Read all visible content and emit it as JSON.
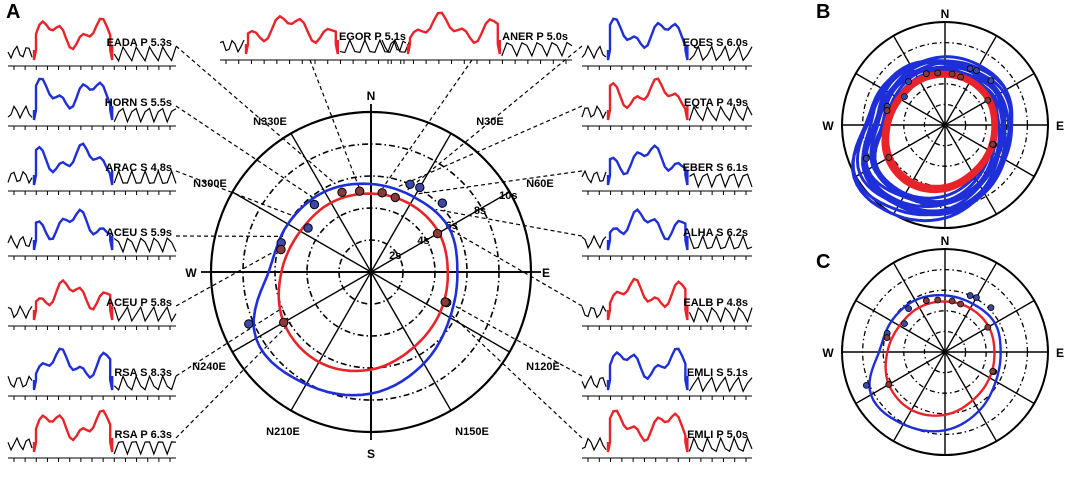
{
  "colors": {
    "p_wave": "#e8242a",
    "s_wave": "#1f2fd8",
    "black": "#000000",
    "station_dot": "#8b3a3a"
  },
  "panels": {
    "A": "A",
    "B": "B",
    "C": "C"
  },
  "compass": {
    "N": "N",
    "E": "E",
    "S": "S",
    "W": "W"
  },
  "azimuth_labels": [
    "N30E",
    "N60E",
    "N120E",
    "N150E",
    "N210E",
    "N240E",
    "N300E",
    "N330E"
  ],
  "chart_data": [
    {
      "panel": "A",
      "type": "polar-line",
      "title": "",
      "radial_unit": "s",
      "radial_ticks": [
        2,
        4,
        6,
        8,
        10
      ],
      "radial_tick_labels": [
        "2s",
        "4s",
        "6s",
        "8s",
        "10s"
      ],
      "rlim": [
        0,
        10
      ],
      "series": [
        {
          "name": "P",
          "color": "#e8242a",
          "azimuth_deg": [
            0,
            30,
            60,
            90,
            120,
            150,
            180,
            210,
            240,
            270,
            300,
            330
          ],
          "r_s": [
            4.9,
            4.9,
            4.9,
            4.8,
            5.0,
            5.4,
            6.1,
            6.5,
            6.3,
            5.6,
            5.1,
            5.0
          ]
        },
        {
          "name": "S",
          "color": "#1f2fd8",
          "azimuth_deg": [
            0,
            30,
            60,
            90,
            120,
            150,
            180,
            210,
            240,
            270,
            300,
            330
          ],
          "r_s": [
            5.5,
            5.4,
            5.6,
            5.4,
            5.7,
            6.6,
            7.6,
            8.1,
            8.3,
            6.4,
            6.0,
            5.8
          ]
        }
      ],
      "stations": [
        {
          "name": "EADA P",
          "value": "5.3s",
          "azimuth_deg": 340,
          "r_s": 5.3,
          "wave": "P"
        },
        {
          "name": "EGOR P",
          "value": "5.1s",
          "azimuth_deg": 352,
          "r_s": 5.1,
          "wave": "P"
        },
        {
          "name": "ANER P",
          "value": "5.0s",
          "azimuth_deg": 8,
          "r_s": 5.0,
          "wave": "P"
        },
        {
          "name": "EQES S",
          "value": "6.0s",
          "azimuth_deg": 24,
          "r_s": 6.0,
          "wave": "S"
        },
        {
          "name": "EQTA P",
          "value": "4.9s",
          "azimuth_deg": 18,
          "r_s": 4.9,
          "wave": "P"
        },
        {
          "name": "EBER S",
          "value": "6.1s",
          "azimuth_deg": 30,
          "r_s": 6.1,
          "wave": "S"
        },
        {
          "name": "ALHA S",
          "value": "6.2s",
          "azimuth_deg": 46,
          "r_s": 6.2,
          "wave": "S"
        },
        {
          "name": "EALB P",
          "value": "4.8s",
          "azimuth_deg": 60,
          "r_s": 4.8,
          "wave": "P"
        },
        {
          "name": "EMLI S",
          "value": "5.1s",
          "azimuth_deg": 112,
          "r_s": 5.1,
          "wave": "S"
        },
        {
          "name": "EMLI P",
          "value": "5.0s",
          "azimuth_deg": 112,
          "r_s": 5.0,
          "wave": "P"
        },
        {
          "name": "HORN S",
          "value": "5.5s",
          "azimuth_deg": 320,
          "r_s": 5.5,
          "wave": "S"
        },
        {
          "name": "ARAC S",
          "value": "4.8s",
          "azimuth_deg": 305,
          "r_s": 4.8,
          "wave": "S"
        },
        {
          "name": "ACEU S",
          "value": "5.9s",
          "azimuth_deg": 288,
          "r_s": 5.9,
          "wave": "S"
        },
        {
          "name": "ACEU P",
          "value": "5.8s",
          "azimuth_deg": 284,
          "r_s": 5.8,
          "wave": "P"
        },
        {
          "name": "RSA S",
          "value": "8.3s",
          "azimuth_deg": 247,
          "r_s": 8.3,
          "wave": "S"
        },
        {
          "name": "RSA P",
          "value": "6.3s",
          "azimuth_deg": 240,
          "r_s": 6.3,
          "wave": "P"
        }
      ]
    },
    {
      "panel": "B",
      "type": "polar-line",
      "title": "",
      "rlim": [
        0,
        10
      ],
      "note_series_count": 30
    },
    {
      "panel": "C",
      "type": "polar-line",
      "title": "",
      "rlim": [
        0,
        10
      ]
    }
  ],
  "cards_left": [
    {
      "label": "EADA P 5.3s",
      "wave": "P"
    },
    {
      "label": "HORN S 5.5s",
      "wave": "S"
    },
    {
      "label": "ARAC S 4.8s",
      "wave": "S"
    },
    {
      "label": "ACEU S 5.9s",
      "wave": "S"
    },
    {
      "label": "ACEU P 5.8s",
      "wave": "P"
    },
    {
      "label": "RSA S 8.3s",
      "wave": "S"
    },
    {
      "label": "RSA P 6.3s",
      "wave": "P"
    }
  ],
  "cards_top": [
    {
      "label": "EGOR P 5.1s",
      "wave": "P"
    },
    {
      "label": "ANER P 5.0s",
      "wave": "P"
    }
  ],
  "cards_right": [
    {
      "label": "EQES S 6.0s",
      "wave": "S"
    },
    {
      "label": "EQTA P 4.9s",
      "wave": "P"
    },
    {
      "label": "EBER S 6.1s",
      "wave": "S"
    },
    {
      "label": "ALHA S 6.2s",
      "wave": "S"
    },
    {
      "label": "EALB P 4.8s",
      "wave": "P"
    },
    {
      "label": "EMLI S 5.1s",
      "wave": "S"
    },
    {
      "label": "EMLI P 5.0s",
      "wave": "P"
    }
  ]
}
